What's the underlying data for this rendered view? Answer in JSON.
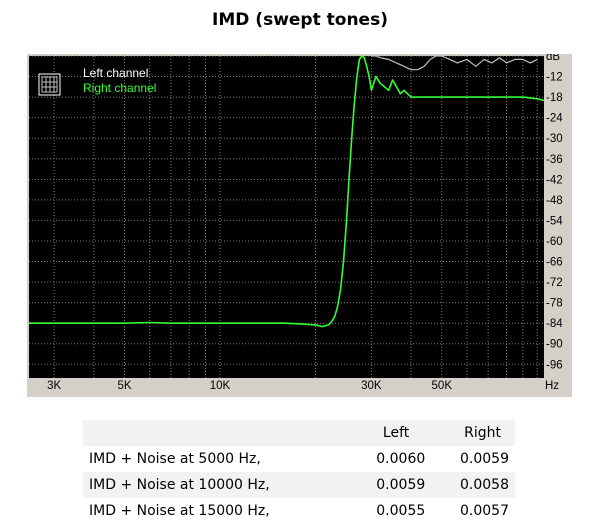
{
  "title": "IMD (swept tones)",
  "chart_data": {
    "type": "line",
    "title": "IMD (swept tones)",
    "x_scale": "log",
    "xlim": [
      2500,
      105000
    ],
    "ylim": [
      -100,
      -6
    ],
    "x_unit": "Hz",
    "y_unit": "dB",
    "x_tick_labels": [
      {
        "value": 3000,
        "label": "3K"
      },
      {
        "value": 5000,
        "label": "5K"
      },
      {
        "value": 10000,
        "label": "10K"
      },
      {
        "value": 30000,
        "label": "30K"
      },
      {
        "value": 50000,
        "label": "50K"
      }
    ],
    "x_gridlines": [
      3000,
      4000,
      5000,
      6000,
      7000,
      8000,
      9000,
      10000,
      20000,
      30000,
      40000,
      50000,
      60000,
      70000,
      80000,
      90000,
      100000
    ],
    "y_tick_labels": [
      "dB",
      "-12",
      "-18",
      "-24",
      "-30",
      "-36",
      "-42",
      "-48",
      "-54",
      "-60",
      "-66",
      "-72",
      "-78",
      "-84",
      "-90",
      "-96"
    ],
    "y_ticks": [
      -6,
      -12,
      -18,
      -24,
      -30,
      -36,
      -42,
      -48,
      -54,
      -60,
      -66,
      -72,
      -78,
      -84,
      -90,
      -96
    ],
    "grid": true,
    "legend_position": "top-left",
    "series": [
      {
        "name": "Left channel",
        "color": "#c0c0c0",
        "points": [
          [
            30000,
            -6
          ],
          [
            31000,
            -6
          ],
          [
            32000,
            -6.5
          ],
          [
            34000,
            -7
          ],
          [
            36000,
            -8
          ],
          [
            38000,
            -9
          ],
          [
            40000,
            -10
          ],
          [
            42000,
            -10
          ],
          [
            44000,
            -9
          ],
          [
            46000,
            -7
          ],
          [
            48000,
            -6
          ],
          [
            50000,
            -6
          ],
          [
            53000,
            -7
          ],
          [
            56000,
            -8
          ],
          [
            60000,
            -7
          ],
          [
            64000,
            -9
          ],
          [
            68000,
            -7
          ],
          [
            72000,
            -8
          ],
          [
            76000,
            -6.5
          ],
          [
            80000,
            -8
          ],
          [
            85000,
            -7
          ],
          [
            90000,
            -7
          ],
          [
            95000,
            -8
          ],
          [
            100000,
            -7
          ]
        ]
      },
      {
        "name": "Right channel",
        "color": "#33ff33",
        "points": [
          [
            2500,
            -84
          ],
          [
            3000,
            -84
          ],
          [
            4000,
            -84
          ],
          [
            5000,
            -84
          ],
          [
            6000,
            -83.8
          ],
          [
            7000,
            -84
          ],
          [
            8000,
            -84
          ],
          [
            10000,
            -84
          ],
          [
            12000,
            -84
          ],
          [
            14000,
            -84
          ],
          [
            16000,
            -84
          ],
          [
            18000,
            -84.2
          ],
          [
            20000,
            -84.5
          ],
          [
            21000,
            -85
          ],
          [
            22000,
            -84.5
          ],
          [
            22500,
            -83.5
          ],
          [
            23000,
            -82
          ],
          [
            23500,
            -79
          ],
          [
            24000,
            -74
          ],
          [
            24500,
            -66
          ],
          [
            25000,
            -55
          ],
          [
            25500,
            -42
          ],
          [
            26000,
            -30
          ],
          [
            26500,
            -20
          ],
          [
            27000,
            -12
          ],
          [
            27500,
            -7
          ],
          [
            28000,
            -6
          ],
          [
            28500,
            -6.5
          ],
          [
            29000,
            -9
          ],
          [
            29500,
            -12
          ],
          [
            30000,
            -16
          ],
          [
            31000,
            -12
          ],
          [
            32000,
            -14
          ],
          [
            33000,
            -15
          ],
          [
            34000,
            -16
          ],
          [
            35000,
            -13
          ],
          [
            36000,
            -15
          ],
          [
            37000,
            -17
          ],
          [
            38000,
            -16
          ],
          [
            40000,
            -18
          ],
          [
            45000,
            -18
          ],
          [
            50000,
            -18
          ],
          [
            60000,
            -18
          ],
          [
            70000,
            -18
          ],
          [
            80000,
            -18
          ],
          [
            90000,
            -18
          ],
          [
            100000,
            -18.5
          ],
          [
            105000,
            -19
          ]
        ]
      }
    ]
  },
  "table": {
    "headers": [
      "",
      "Left",
      "Right"
    ],
    "rows": [
      {
        "label": "IMD + Noise at 5000 Hz,",
        "left": "0.0060",
        "right": "0.0059"
      },
      {
        "label": "IMD + Noise at 10000 Hz,",
        "left": "0.0059",
        "right": "0.0058"
      },
      {
        "label": "IMD + Noise at 15000 Hz,",
        "left": "0.0055",
        "right": "0.0057"
      }
    ]
  }
}
